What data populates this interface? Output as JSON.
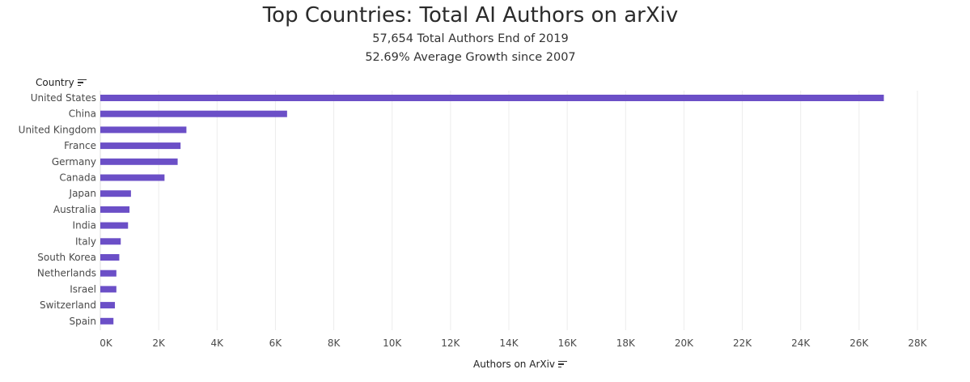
{
  "chart_data": {
    "type": "bar",
    "orientation": "horizontal",
    "title": "Top Countries: Total AI Authors on arXiv",
    "subtitle_lines": [
      "57,654 Total Authors End of 2019",
      "52.69% Average Growth since 2007"
    ],
    "ylabel": "Country",
    "xlabel": "Authors on ArXiv",
    "categories": [
      "United States",
      "China",
      "United Kingdom",
      "France",
      "Germany",
      "Canada",
      "Japan",
      "Australia",
      "India",
      "Italy",
      "South Korea",
      "Netherlands",
      "Israel",
      "Switzerland",
      "Spain"
    ],
    "values": [
      26850,
      6400,
      2950,
      2750,
      2650,
      2200,
      1050,
      1000,
      950,
      700,
      650,
      550,
      550,
      500,
      450
    ],
    "xlim": [
      0,
      28000
    ],
    "xticks": [
      0,
      2000,
      4000,
      6000,
      8000,
      10000,
      12000,
      14000,
      16000,
      18000,
      20000,
      22000,
      24000,
      26000,
      28000
    ],
    "xtick_labels": [
      "0K",
      "2K",
      "4K",
      "6K",
      "8K",
      "10K",
      "12K",
      "14K",
      "16K",
      "18K",
      "20K",
      "22K",
      "24K",
      "26K",
      "28K"
    ],
    "grid": "vertical",
    "bar_color": "#6b4fc7"
  },
  "icons": {
    "country_sort": "sort-icon",
    "axis_sort": "sort-icon"
  }
}
